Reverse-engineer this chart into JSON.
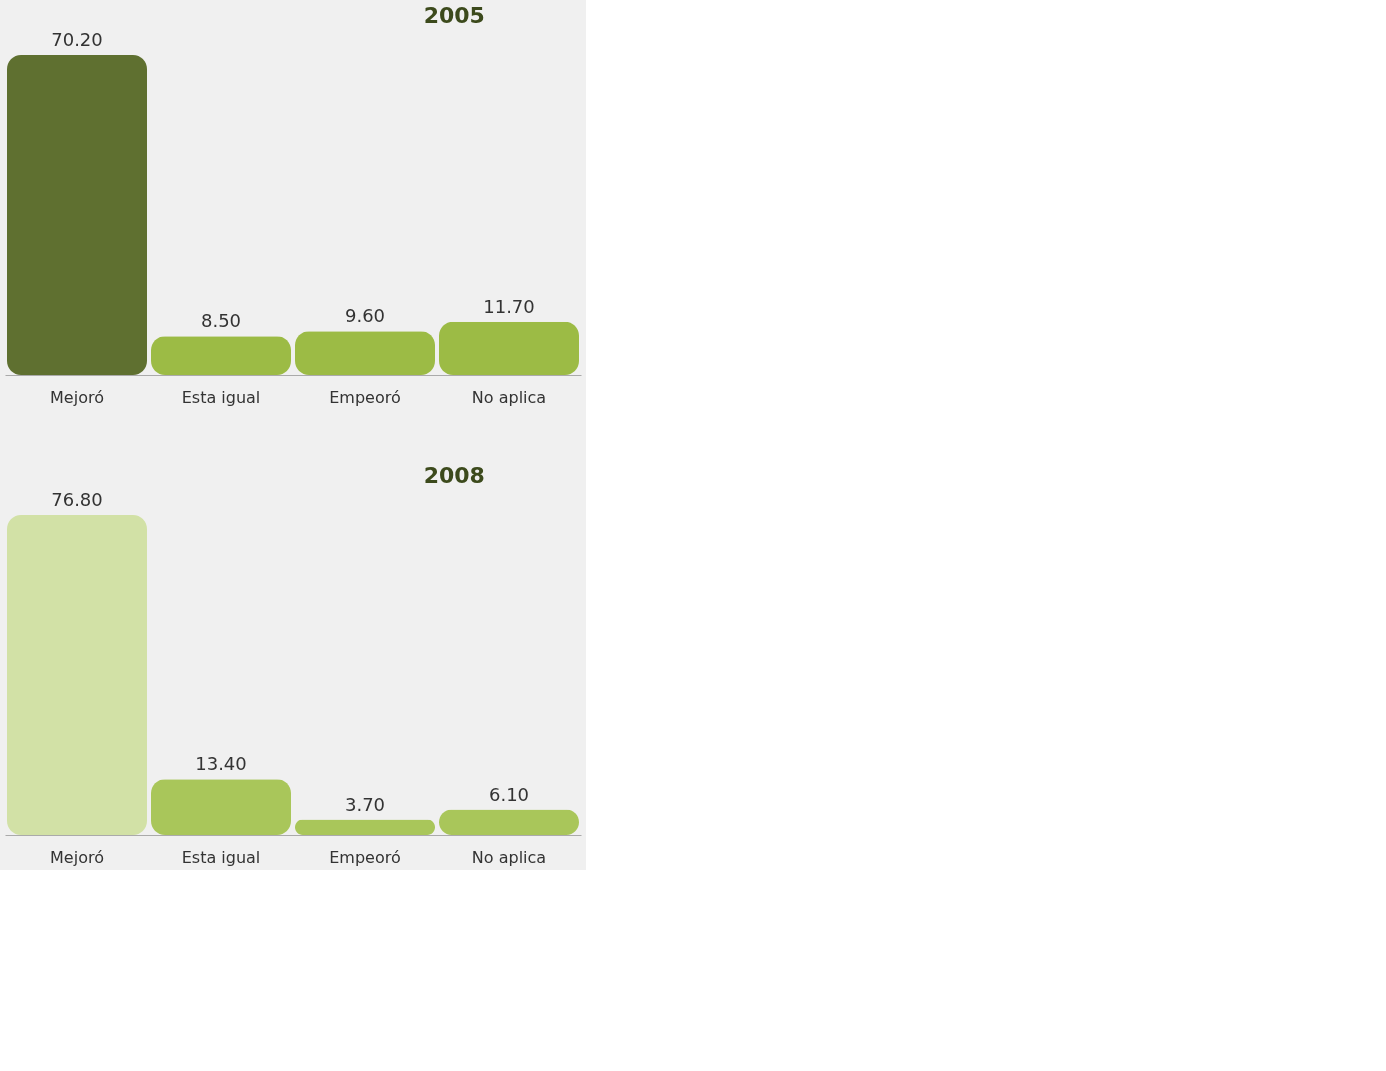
{
  "chart_data": [
    {
      "type": "bar",
      "title": "2005",
      "categories": [
        "Mejoró",
        "Esta igual",
        "Empeoró",
        "No aplica"
      ],
      "values": [
        70.2,
        8.5,
        9.6,
        11.7
      ],
      "colors": [
        "#5f7030",
        "#9cbb45",
        "#9cbb45",
        "#9cbb45"
      ],
      "value_labels": [
        "70.20",
        "8.50",
        "9.60",
        "11.70"
      ]
    },
    {
      "type": "bar",
      "title": "2008",
      "categories": [
        "Mejoró",
        "Esta igual",
        "Empeoró",
        "No aplica"
      ],
      "values": [
        76.8,
        13.4,
        3.7,
        6.1
      ],
      "colors": [
        "#d2e1a6",
        "#a9c65a",
        "#a9c65a",
        "#a9c65a"
      ],
      "value_labels": [
        "76.80",
        "13.40",
        "3.70",
        "6.10"
      ]
    }
  ]
}
